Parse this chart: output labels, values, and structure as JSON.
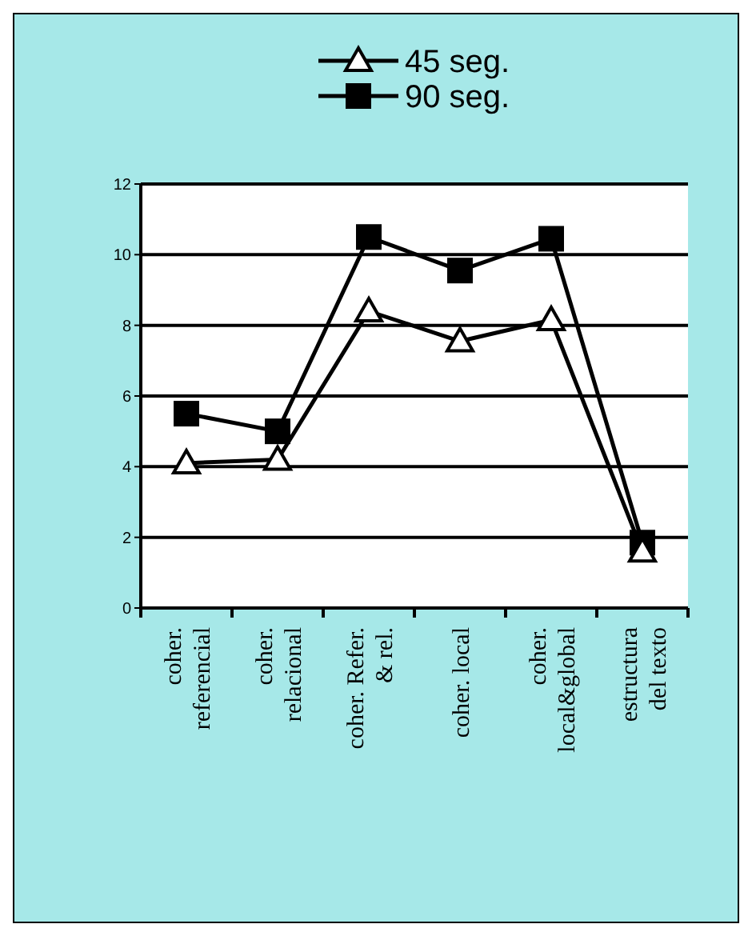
{
  "chart_data": {
    "type": "line",
    "categories": [
      "coher. referencial",
      "coher. relacional",
      "coher. Refer. & rel.",
      "coher. local",
      "coher. local&global",
      "estructura del texto"
    ],
    "series": [
      {
        "name": "45 seg.",
        "color": "#000000",
        "marker": "triangle",
        "values": [
          4.1,
          4.2,
          8.4,
          7.55,
          8.15,
          1.6
        ]
      },
      {
        "name": "90 seg.",
        "color": "#000000",
        "marker": "square",
        "values": [
          5.5,
          5.0,
          10.5,
          9.55,
          10.45,
          1.85
        ]
      }
    ],
    "ylim": [
      0,
      12
    ],
    "yticks": [
      0,
      2,
      4,
      6,
      8,
      10,
      12
    ],
    "grid": "y",
    "legend": "top",
    "line_style": "solid"
  }
}
